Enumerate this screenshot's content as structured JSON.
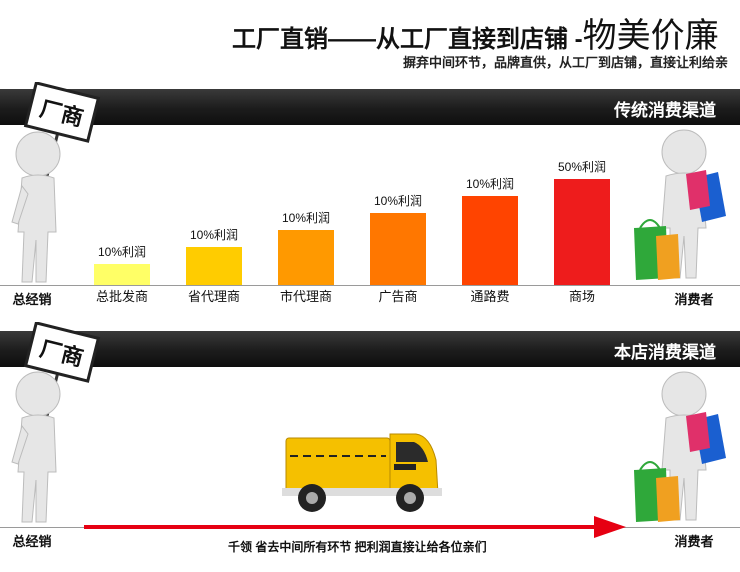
{
  "header": {
    "title_main": "工厂直销——从工厂直接到店铺 -",
    "title_emph": "物美价廉",
    "subtitle": "摒弃中间环节，品牌直供，从工厂到店铺，直接让利给亲"
  },
  "section_traditional": {
    "banner": "传统消费渠道",
    "sign": "厂商"
  },
  "section_store": {
    "banner": "本店消费渠道",
    "sign": "厂商"
  },
  "chart_data": {
    "type": "bar",
    "categories": [
      "总批发商",
      "省代理商",
      "市代理商",
      "广告商",
      "通路费",
      "商场"
    ],
    "values": [
      1,
      2,
      3,
      4,
      5,
      6
    ],
    "data_labels": [
      "10%利润",
      "10%利润",
      "10%利润",
      "10%利润",
      "10%利润",
      "50%利润"
    ],
    "start_label": "总经销",
    "end_label": "消费者",
    "colors": [
      "#ffff66",
      "#ffcc00",
      "#ff9900",
      "#ff7700",
      "#ff4400",
      "#ee1c1c"
    ],
    "grid": false
  },
  "direct_channel": {
    "start_label": "总经销",
    "end_label": "消费者",
    "arrow_text": "千领 省去中间所有环节 把利润直接让给各位亲们",
    "arrow_color": "#e60012",
    "truck_color": "#f5c000"
  }
}
